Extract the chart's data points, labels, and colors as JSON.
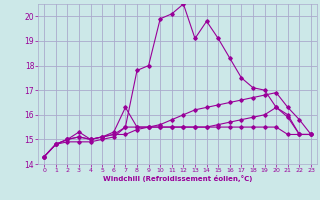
{
  "xlabel": "Windchill (Refroidissement éolien,°C)",
  "bg_color": "#cce8e8",
  "grid_color": "#aaaacc",
  "line_color": "#990099",
  "ylim": [
    14,
    20.5
  ],
  "xlim": [
    -0.5,
    23.5
  ],
  "yticks": [
    14,
    15,
    16,
    17,
    18,
    19,
    20
  ],
  "xticks": [
    0,
    1,
    2,
    3,
    4,
    5,
    6,
    7,
    8,
    9,
    10,
    11,
    12,
    13,
    14,
    15,
    16,
    17,
    18,
    19,
    20,
    21,
    22,
    23
  ],
  "series": [
    {
      "x": [
        0,
        1,
        2,
        3,
        4,
        5,
        6,
        7,
        8,
        9,
        10,
        11,
        12,
        13,
        14,
        15,
        16,
        17,
        18,
        19,
        20,
        21,
        22,
        23
      ],
      "y": [
        14.3,
        14.8,
        14.9,
        14.9,
        14.9,
        15.0,
        15.1,
        15.5,
        17.8,
        18.0,
        19.9,
        20.1,
        20.5,
        19.1,
        19.8,
        19.1,
        18.3,
        17.5,
        17.1,
        17.0,
        16.3,
        15.9,
        15.2,
        15.2
      ]
    },
    {
      "x": [
        0,
        1,
        2,
        3,
        4,
        5,
        6,
        7,
        8,
        9,
        10,
        11,
        12,
        13,
        14,
        15,
        16,
        17,
        18,
        19,
        20,
        21,
        22,
        23
      ],
      "y": [
        14.3,
        14.8,
        15.0,
        15.1,
        15.0,
        15.1,
        15.3,
        16.3,
        15.5,
        15.5,
        15.5,
        15.5,
        15.5,
        15.5,
        15.5,
        15.6,
        15.7,
        15.8,
        15.9,
        16.0,
        16.3,
        16.0,
        15.2,
        15.2
      ]
    },
    {
      "x": [
        0,
        1,
        2,
        3,
        4,
        5,
        6,
        7,
        8,
        9,
        10,
        11,
        12,
        13,
        14,
        15,
        16,
        17,
        18,
        19,
        20,
        21,
        22,
        23
      ],
      "y": [
        14.3,
        14.8,
        15.0,
        15.1,
        15.0,
        15.1,
        15.2,
        15.2,
        15.4,
        15.5,
        15.6,
        15.8,
        16.0,
        16.2,
        16.3,
        16.4,
        16.5,
        16.6,
        16.7,
        16.8,
        16.9,
        16.3,
        15.8,
        15.2
      ]
    },
    {
      "x": [
        0,
        1,
        2,
        3,
        4,
        5,
        6,
        7,
        8,
        9,
        10,
        11,
        12,
        13,
        14,
        15,
        16,
        17,
        18,
        19,
        20,
        21,
        22,
        23
      ],
      "y": [
        14.3,
        14.8,
        15.0,
        15.3,
        15.0,
        15.1,
        15.2,
        15.5,
        15.5,
        15.5,
        15.5,
        15.5,
        15.5,
        15.5,
        15.5,
        15.5,
        15.5,
        15.5,
        15.5,
        15.5,
        15.5,
        15.2,
        15.2,
        15.2
      ]
    }
  ]
}
